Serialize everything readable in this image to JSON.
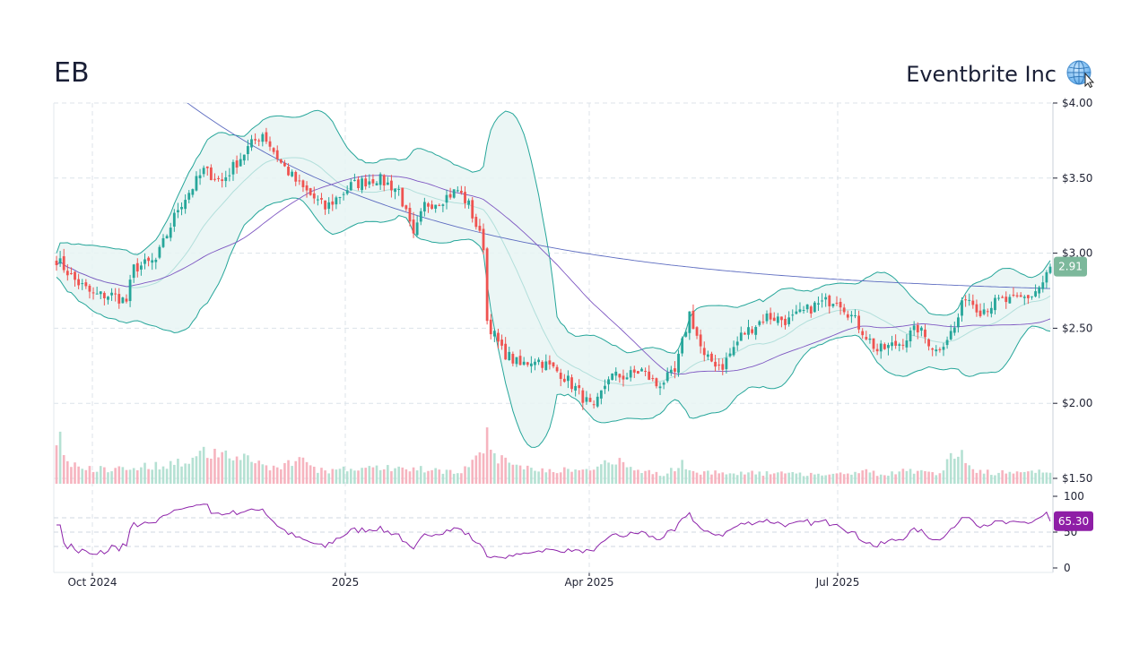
{
  "header": {
    "ticker": "EB",
    "company": "Eventbrite Inc"
  },
  "icons": {
    "globe": "globe-icon",
    "cursor": "mouse-pointer-icon"
  },
  "colors": {
    "up": "#26a69a",
    "down": "#ef5350",
    "band_line": "#26a69a",
    "band_fill": "#e8f5f3",
    "band_mid": "#b2dfdb",
    "sma_long": "#5c6bc0",
    "sma_mid": "#7e57c2",
    "rsi": "#8e24aa",
    "last_price_badge": "#7cb89b",
    "rsi_badge": "#8e1ea6"
  },
  "chart_data": {
    "type": "candlestick",
    "price_axis": {
      "ticks": [
        "$4.00",
        "$3.50",
        "$3.00",
        "$2.50",
        "$2.00",
        "$1.50"
      ],
      "ylim": [
        1.5,
        4.0
      ]
    },
    "rsi_axis": {
      "ticks": [
        "100",
        "50",
        "0"
      ],
      "ylim": [
        0,
        100
      ],
      "bands": [
        30,
        50,
        70
      ]
    },
    "x_ticks": [
      "Oct 2024",
      "2025",
      "Apr 2025",
      "Jul 2025"
    ],
    "last_price": "2.91",
    "last_rsi": "65.30",
    "close_anchors": [
      [
        0,
        2.96
      ],
      [
        5,
        2.82
      ],
      [
        10,
        2.72
      ],
      [
        15,
        2.72
      ],
      [
        19,
        2.68
      ],
      [
        21,
        2.9
      ],
      [
        27,
        2.95
      ],
      [
        33,
        3.3
      ],
      [
        40,
        3.55
      ],
      [
        45,
        3.48
      ],
      [
        52,
        3.7
      ],
      [
        56,
        3.8
      ],
      [
        61,
        3.6
      ],
      [
        66,
        3.45
      ],
      [
        73,
        3.3
      ],
      [
        80,
        3.45
      ],
      [
        87,
        3.5
      ],
      [
        93,
        3.42
      ],
      [
        97,
        3.1
      ],
      [
        100,
        3.32
      ],
      [
        104,
        3.35
      ],
      [
        109,
        3.42
      ],
      [
        112,
        3.32
      ],
      [
        116,
        3.05
      ],
      [
        117,
        2.55
      ],
      [
        121,
        2.35
      ],
      [
        126,
        2.25
      ],
      [
        130,
        2.3
      ],
      [
        137,
        2.2
      ],
      [
        141,
        2.1
      ],
      [
        146,
        1.95
      ],
      [
        150,
        2.18
      ],
      [
        155,
        2.18
      ],
      [
        159,
        2.22
      ],
      [
        163,
        2.12
      ],
      [
        168,
        2.2
      ],
      [
        172,
        2.6
      ],
      [
        176,
        2.3
      ],
      [
        181,
        2.25
      ],
      [
        186,
        2.45
      ],
      [
        193,
        2.58
      ],
      [
        199,
        2.55
      ],
      [
        206,
        2.65
      ],
      [
        212,
        2.7
      ],
      [
        217,
        2.55
      ],
      [
        223,
        2.35
      ],
      [
        229,
        2.4
      ],
      [
        234,
        2.5
      ],
      [
        239,
        2.35
      ],
      [
        244,
        2.5
      ],
      [
        247,
        2.72
      ],
      [
        251,
        2.62
      ],
      [
        256,
        2.68
      ],
      [
        260,
        2.68
      ],
      [
        265,
        2.72
      ],
      [
        268,
        2.8
      ],
      [
        270,
        2.91
      ]
    ],
    "volume_anchors": [
      [
        0,
        400
      ],
      [
        1,
        650
      ],
      [
        3,
        250
      ],
      [
        10,
        180
      ],
      [
        20,
        200
      ],
      [
        35,
        260
      ],
      [
        37,
        350
      ],
      [
        39,
        530
      ],
      [
        40,
        380
      ],
      [
        50,
        340
      ],
      [
        58,
        200
      ],
      [
        68,
        300
      ],
      [
        71,
        160
      ],
      [
        90,
        200
      ],
      [
        110,
        150
      ],
      [
        116,
        350
      ],
      [
        117,
        720
      ],
      [
        118,
        400
      ],
      [
        121,
        300
      ],
      [
        130,
        180
      ],
      [
        145,
        160
      ],
      [
        149,
        260
      ],
      [
        151,
        300
      ],
      [
        158,
        160
      ],
      [
        166,
        120
      ],
      [
        170,
        280
      ],
      [
        172,
        150
      ],
      [
        190,
        130
      ],
      [
        210,
        120
      ],
      [
        220,
        150
      ],
      [
        225,
        110
      ],
      [
        230,
        150
      ],
      [
        240,
        140
      ],
      [
        245,
        420
      ],
      [
        250,
        150
      ],
      [
        260,
        130
      ],
      [
        270,
        160
      ]
    ]
  }
}
